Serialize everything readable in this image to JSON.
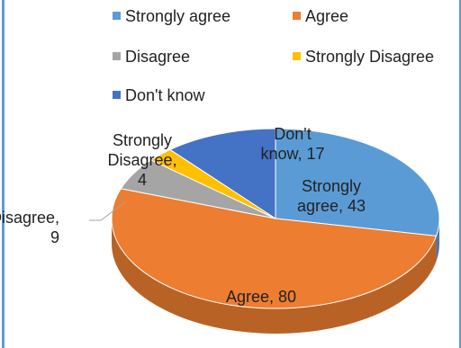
{
  "chart_data": {
    "type": "pie",
    "title": "",
    "categories": [
      "Strongly agree",
      "Agree",
      "Disagree",
      "Strongly Disagree",
      "Don't know"
    ],
    "values": [
      43,
      80,
      9,
      4,
      17
    ],
    "colors": [
      "#5b9bd5",
      "#ed7d31",
      "#a5a5a5",
      "#ffc000",
      "#4472c4"
    ],
    "data_labels": [
      [
        "Strongly",
        "agree, 43"
      ],
      [
        "Agree, 80"
      ],
      [
        "Disagree,",
        "9"
      ],
      [
        "Strongly",
        "Disagree,",
        "4"
      ],
      [
        "Don't",
        "know, 17"
      ]
    ],
    "legend": {
      "placement": "top",
      "items": [
        "Strongly agree",
        "Agree",
        "Disagree",
        "Strongly Disagree",
        "Don't know"
      ]
    },
    "style": "3d-pie"
  }
}
